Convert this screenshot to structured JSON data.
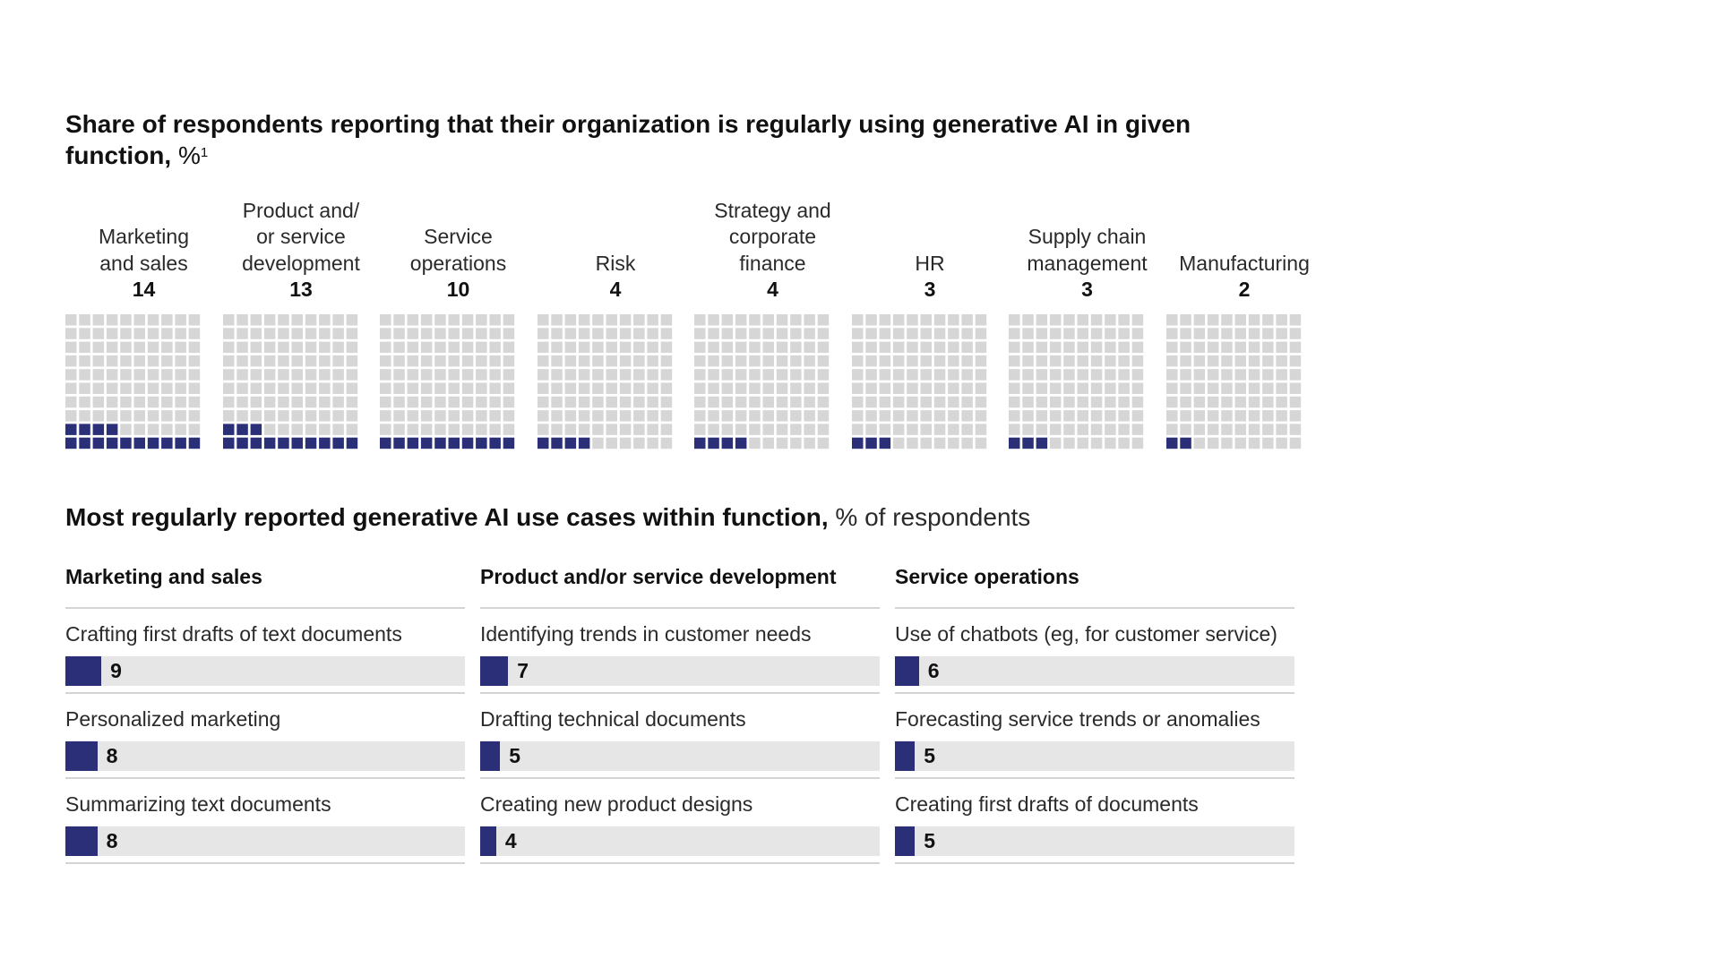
{
  "title": "Share of respondents reporting that their organization is regularly using generative AI in given function,",
  "title_unit": "%",
  "title_footnote": "1",
  "colors": {
    "filled": "#2a2f78",
    "empty": "#d6d6d6",
    "track": "#e6e6e6"
  },
  "chart_data": [
    {
      "type": "waffle",
      "total_cells": 100,
      "categories": [
        "Marketing\nand sales",
        "Product and/\nor service\ndevelopment",
        "Service\noperations",
        "Risk",
        "Strategy and\ncorporate\nfinance",
        "HR",
        "Supply chain\nmanagement",
        "Manufacturing"
      ],
      "values": [
        14,
        13,
        10,
        4,
        4,
        3,
        3,
        2
      ]
    },
    {
      "type": "bar",
      "title": "Most regularly reported generative AI use cases within function,",
      "title_unit": "% of respondents",
      "xlim": [
        0,
        100
      ],
      "groups": [
        {
          "name": "Marketing and sales",
          "categories": [
            "Crafting first drafts of text documents",
            "Personalized marketing",
            "Summarizing text documents"
          ],
          "values": [
            9,
            8,
            8
          ]
        },
        {
          "name": "Product and/or service development",
          "categories": [
            "Identifying trends in customer needs",
            "Drafting technical documents",
            "Creating new product designs"
          ],
          "values": [
            7,
            5,
            4
          ]
        },
        {
          "name": "Service operations",
          "categories": [
            "Use of chatbots (eg, for customer service)",
            "Forecasting service trends or anomalies",
            "Creating first drafts of documents"
          ],
          "values": [
            6,
            5,
            5
          ]
        }
      ]
    }
  ]
}
